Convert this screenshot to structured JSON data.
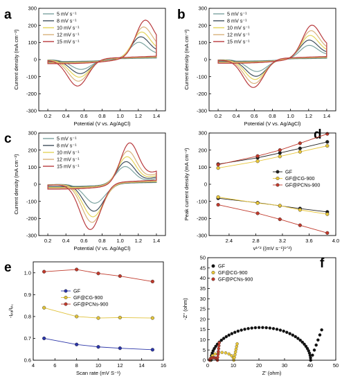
{
  "panels": {
    "a": {
      "label": "a"
    },
    "b": {
      "label": "b"
    },
    "c": {
      "label": "c"
    },
    "d": {
      "label": "d"
    },
    "e": {
      "label": "e"
    },
    "f": {
      "label": "f"
    }
  },
  "cv_colors": [
    "#7ba3a0",
    "#3f4f5c",
    "#e4d45a",
    "#d9b27b",
    "#b83a3d"
  ],
  "chart_data": [
    {
      "id": "a",
      "type": "line",
      "xlabel": "Potential (V vs. Ag/AgCl)",
      "ylabel": "Current density (mA cm⁻²)",
      "xlim": [
        0.1,
        1.5
      ],
      "ylim": [
        -300,
        300
      ],
      "xticks": [
        "0.2",
        "0.4",
        "0.6",
        "0.8",
        "1.0",
        "1.2",
        "1.4"
      ],
      "yticks": [
        "-300",
        "-200",
        "-100",
        "0",
        "100",
        "200",
        "300"
      ],
      "legend": "top-left",
      "series": [
        {
          "name": "5 mV s⁻¹",
          "ipa": 115,
          "ipc": -62,
          "epa": 1.2,
          "epc": 0.57
        },
        {
          "name": "8 mV s⁻¹",
          "ipa": 150,
          "ipc": -88,
          "epa": 1.22,
          "epc": 0.56
        },
        {
          "name": "10 mV s⁻¹",
          "ipa": 180,
          "ipc": -110,
          "epa": 1.23,
          "epc": 0.55
        },
        {
          "name": "12 mV s⁻¹",
          "ipa": 210,
          "ipc": -135,
          "epa": 1.25,
          "epc": 0.54
        },
        {
          "name": "15 mV s⁻¹",
          "ipa": 250,
          "ipc": -165,
          "epa": 1.27,
          "epc": 0.53
        }
      ]
    },
    {
      "id": "b",
      "type": "line",
      "xlabel": "Potential (V vs. Ag/AgCl)",
      "ylabel": "Current density (mA cm⁻²)",
      "xlim": [
        0.1,
        1.5
      ],
      "ylim": [
        -300,
        300
      ],
      "xticks": [
        "0.2",
        "0.4",
        "0.6",
        "0.8",
        "1.0",
        "1.2",
        "1.4"
      ],
      "yticks": [
        "-300",
        "-200",
        "-100",
        "0",
        "100",
        "200",
        "300"
      ],
      "legend": "top-left",
      "series": [
        {
          "name": "5 mV s⁻¹",
          "ipa": 95,
          "ipc": -75,
          "epa": 1.2,
          "epc": 0.63
        },
        {
          "name": "8 mV s⁻¹",
          "ipa": 130,
          "ipc": -105,
          "epa": 1.2,
          "epc": 0.62
        },
        {
          "name": "10 mV s⁻¹",
          "ipa": 160,
          "ipc": -125,
          "epa": 1.21,
          "epc": 0.61
        },
        {
          "name": "12 mV s⁻¹",
          "ipa": 190,
          "ipc": -150,
          "epa": 1.22,
          "epc": 0.6
        },
        {
          "name": "15 mV s⁻¹",
          "ipa": 225,
          "ipc": -175,
          "epa": 1.23,
          "epc": 0.59
        }
      ]
    },
    {
      "id": "c",
      "type": "line",
      "xlabel": "Potential (V vs. Ag/AgCl)",
      "ylabel": "Current density (mA cm⁻²)",
      "xlim": [
        0.1,
        1.5
      ],
      "ylim": [
        -300,
        300
      ],
      "xticks": [
        "0.2",
        "0.4",
        "0.6",
        "0.8",
        "1.0",
        "1.2",
        "1.4"
      ],
      "yticks": [
        "-300",
        "-200",
        "-100",
        "0",
        "100",
        "200",
        "300"
      ],
      "legend": "top-left",
      "series": [
        {
          "name": "5 mV s⁻¹",
          "ipa": 130,
          "ipc": -120,
          "epa": 1.05,
          "epc": 0.72
        },
        {
          "name": "8 mV s⁻¹",
          "ipa": 165,
          "ipc": -170,
          "epa": 1.06,
          "epc": 0.71
        },
        {
          "name": "10 mV s⁻¹",
          "ipa": 200,
          "ipc": -205,
          "epa": 1.07,
          "epc": 0.7
        },
        {
          "name": "12 mV s⁻¹",
          "ipa": 240,
          "ipc": -240,
          "epa": 1.08,
          "epc": 0.69
        },
        {
          "name": "15 mV s⁻¹",
          "ipa": 295,
          "ipc": -285,
          "epa": 1.1,
          "epc": 0.67
        }
      ]
    },
    {
      "id": "d",
      "type": "line",
      "xlabel": "v¹ᐟ² ((mV s⁻¹)¹ᐟ²)",
      "ylabel": "Peak current density (mA cm⁻²)",
      "xlim": [
        2.1,
        4.0
      ],
      "ylim": [
        -300,
        300
      ],
      "xticks": [
        "2.4",
        "2.8",
        "3.2",
        "3.6",
        "4.0"
      ],
      "yticks": [
        "-300",
        "-200",
        "-100",
        "0",
        "100",
        "200",
        "300"
      ],
      "legend": "center-right",
      "x": [
        2.236,
        2.828,
        3.162,
        3.464,
        3.873
      ],
      "series": [
        {
          "name": "GF",
          "color": "#1f1f1f",
          "values": [
            118,
            155,
            183,
            210,
            248
          ]
        },
        {
          "name": "GF",
          "color": "#1f1f1f",
          "legend": false,
          "values": [
            -82,
            -108,
            -126,
            -142,
            -162
          ]
        },
        {
          "name": "GF@CG-900",
          "color": "#e8c63a",
          "values": [
            95,
            135,
            163,
            190,
            225
          ]
        },
        {
          "name": "GF@CG-900",
          "color": "#e8c63a",
          "legend": false,
          "values": [
            -75,
            -110,
            -125,
            -150,
            -175
          ]
        },
        {
          "name": "GF@PCNs-900",
          "color": "#c0392b",
          "values": [
            115,
            165,
            200,
            240,
            295
          ]
        },
        {
          "name": "GF@PCNs-900",
          "color": "#c0392b",
          "legend": false,
          "values": [
            -120,
            -170,
            -205,
            -240,
            -285
          ]
        }
      ]
    },
    {
      "id": "e",
      "type": "line",
      "xlabel": "Scan rate (mV S⁻¹)",
      "ylabel": "-Iₚₐ/Iₚ꜀",
      "xlim": [
        4,
        16
      ],
      "ylim": [
        0.6,
        1.05
      ],
      "xticks": [
        "4",
        "6",
        "8",
        "10",
        "12",
        "14",
        "16"
      ],
      "yticks": [
        "0.6",
        "0.7",
        "0.8",
        "0.9",
        "1.0"
      ],
      "legend": "center-left",
      "x": [
        5,
        8,
        10,
        12,
        15
      ],
      "series": [
        {
          "name": "GF",
          "color": "#2b35a8",
          "values": [
            0.7,
            0.672,
            0.661,
            0.655,
            0.648
          ]
        },
        {
          "name": "GF@CG-900",
          "color": "#e0c23a",
          "values": [
            0.84,
            0.8,
            0.793,
            0.795,
            0.793
          ]
        },
        {
          "name": "GF@PCNs-900",
          "color": "#c0392b",
          "values": [
            1.005,
            1.015,
            0.997,
            0.985,
            0.96
          ]
        }
      ]
    },
    {
      "id": "f",
      "type": "scatter",
      "xlabel": "Z' (ohm)",
      "ylabel": "-Z'' (ohm)",
      "xlim": [
        0,
        50
      ],
      "ylim": [
        0,
        50
      ],
      "xticks": [
        "0",
        "10",
        "20",
        "30",
        "40",
        "50"
      ],
      "yticks": [
        "0",
        "5",
        "10",
        "15",
        "20",
        "25",
        "30",
        "35",
        "40",
        "45",
        "50"
      ],
      "legend": "top-left",
      "series": [
        {
          "name": "GF",
          "color": "#111111",
          "arc": [
            1.3,
            40.2
          ],
          "tail": [
            44.5,
            14.8
          ]
        },
        {
          "name": "GF@CG-900",
          "color": "#e8c63a",
          "arc": [
            1.0,
            10.2
          ],
          "tail": [
            11.5,
            8.0
          ]
        },
        {
          "name": "GF@PCNs-900",
          "color": "#c0392b",
          "arc": [
            0.8,
            3.8
          ],
          "tail": [
            4.5,
            8.5
          ]
        }
      ]
    }
  ]
}
